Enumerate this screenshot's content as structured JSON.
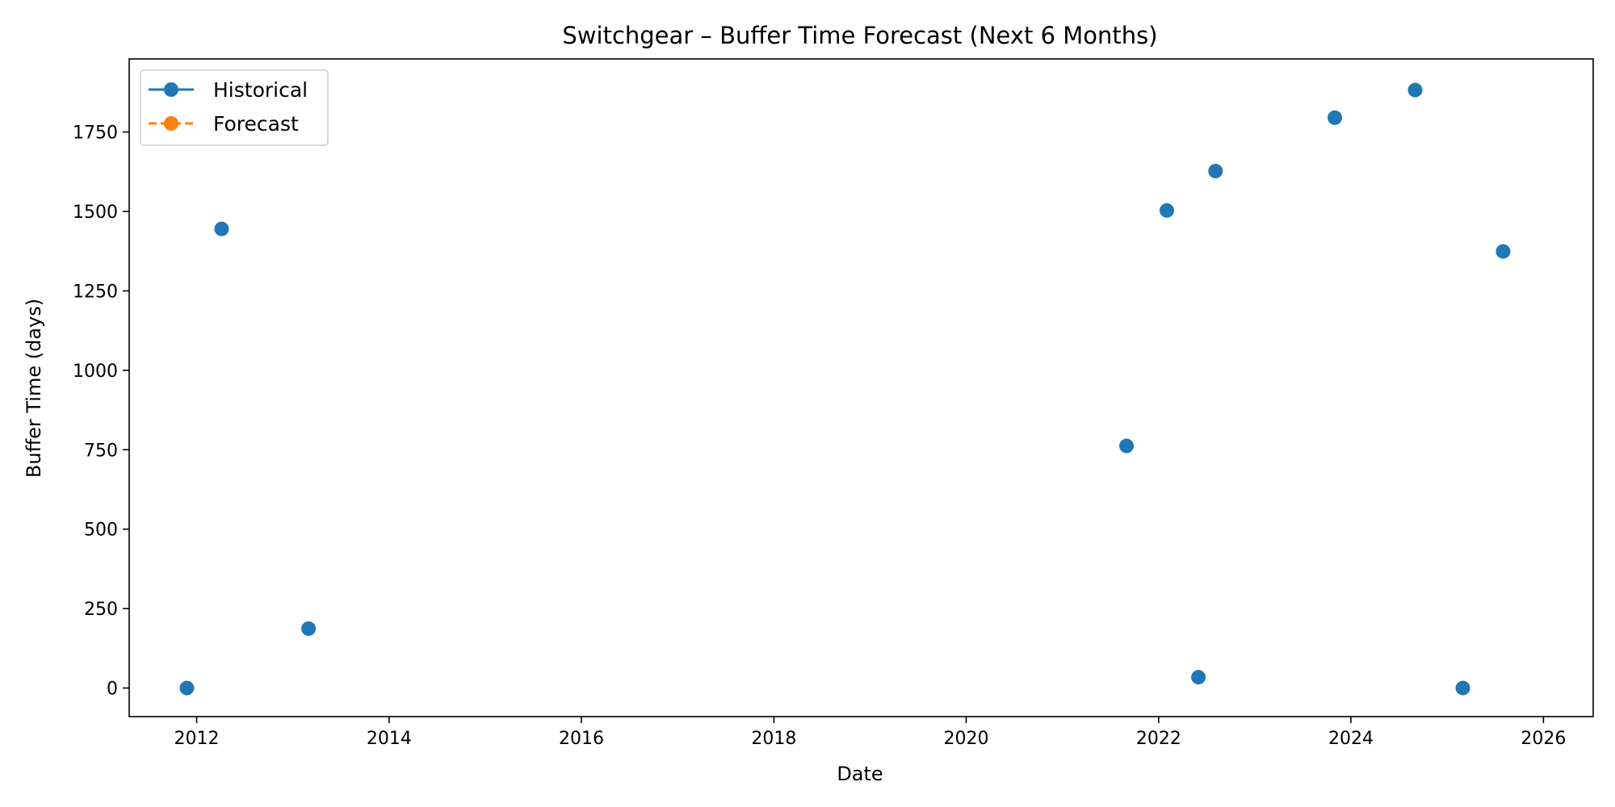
{
  "chart_data": {
    "type": "scatter",
    "title": "Switchgear – Buffer Time Forecast (Next 6 Months)",
    "xlabel": "Date",
    "ylabel": "Buffer Time (days)",
    "x_ticks": [
      "2012",
      "2014",
      "2016",
      "2018",
      "2020",
      "2022",
      "2024",
      "2026"
    ],
    "y_ticks": [
      0,
      250,
      500,
      750,
      1000,
      1250,
      1500,
      1750
    ],
    "xlim": [
      "2011-04-20",
      "2026-07-09"
    ],
    "ylim": [
      -90,
      1980
    ],
    "grid": false,
    "legend_position": "top-left",
    "series": [
      {
        "name": "Historical",
        "color": "#1f77b4",
        "line_style": "solid",
        "marker": "circle",
        "points": [
          {
            "x": "2011-11-25",
            "y": 0
          },
          {
            "x": "2012-04-05",
            "y": 1445
          },
          {
            "x": "2013-03-01",
            "y": 187
          },
          {
            "x": "2021-09-01",
            "y": 762
          },
          {
            "x": "2022-02-01",
            "y": 1503
          },
          {
            "x": "2022-06-01",
            "y": 34
          },
          {
            "x": "2022-08-05",
            "y": 1627
          },
          {
            "x": "2023-11-01",
            "y": 1795
          },
          {
            "x": "2024-09-01",
            "y": 1882
          },
          {
            "x": "2025-03-01",
            "y": 0
          },
          {
            "x": "2025-08-01",
            "y": 1374
          }
        ]
      },
      {
        "name": "Forecast",
        "color": "#ff7f0e",
        "line_style": "dashed",
        "marker": "circle",
        "points": []
      }
    ]
  }
}
